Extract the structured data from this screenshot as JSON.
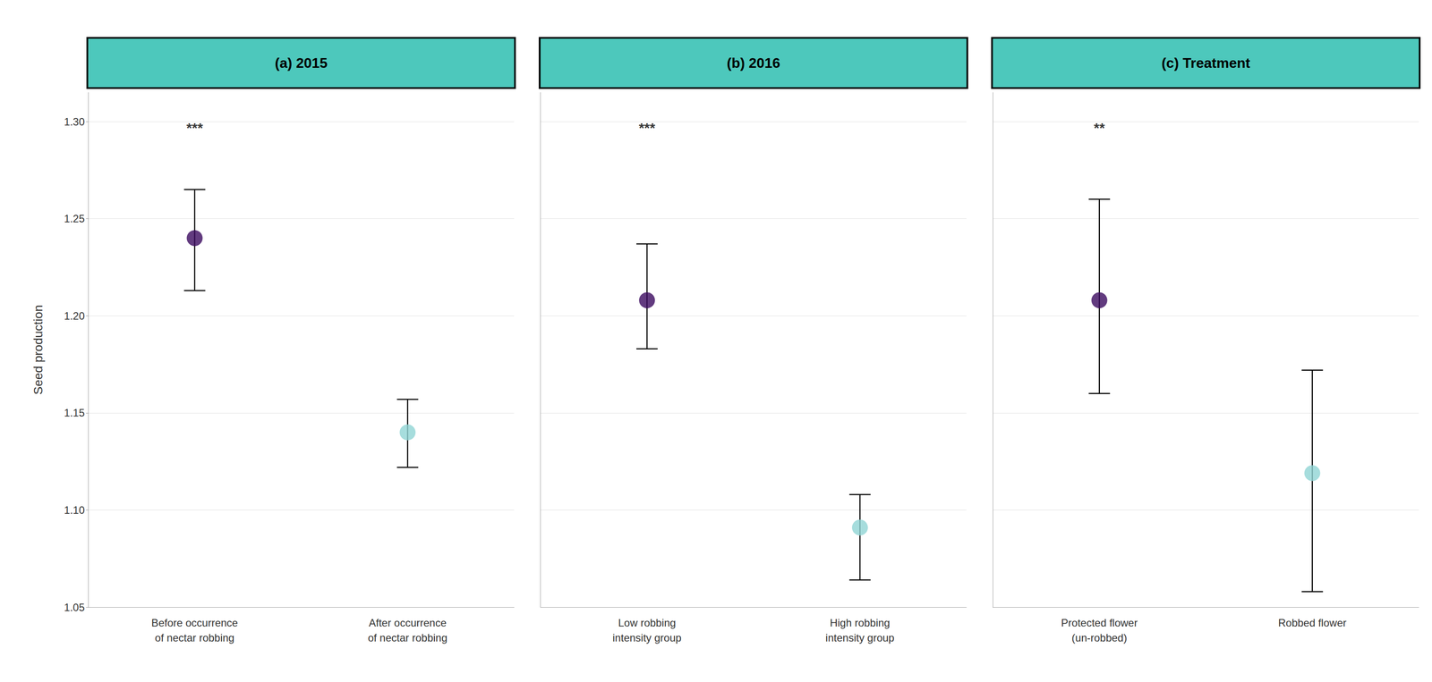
{
  "chart_data": [
    {
      "type": "scatter",
      "title": "(a) 2015",
      "categories": [
        "Before occurrence\nof nectar robbing",
        "After occurrence\nof nectar robbing"
      ],
      "values": [
        1.24,
        1.14
      ],
      "ci_low": [
        1.213,
        1.122
      ],
      "ci_high": [
        1.265,
        1.157
      ],
      "colors": [
        "#3B0A5F",
        "#90D4D4"
      ],
      "annotations": [
        {
          "text": "***",
          "category": "Before occurrence\nof nectar robbing",
          "y": 1.293
        }
      ],
      "ylabel": "Seed production",
      "ylim": [
        1.05,
        1.315
      ],
      "yticks": [
        1.05,
        {
          "value": 1.1,
          "label": "1.10"
        },
        1.15,
        {
          "value": 1.2,
          "label": "1.20"
        },
        1.25,
        {
          "value": 1.3,
          "label": "1.30"
        }
      ],
      "grid": true
    },
    {
      "type": "scatter",
      "title": "(b) 2016",
      "categories": [
        "Low robbing\nintensity group",
        "High robbing\nintensity group"
      ],
      "values": [
        1.208,
        1.091
      ],
      "ci_low": [
        1.183,
        1.064
      ],
      "ci_high": [
        1.237,
        1.108
      ],
      "colors": [
        "#3B0A5F",
        "#90D4D4"
      ],
      "annotations": [
        {
          "text": "***",
          "category": "Low robbing\nintensity group",
          "y": 1.293
        }
      ],
      "ylim": [
        1.05,
        1.315
      ],
      "yticks": [
        1.05,
        {
          "value": 1.1,
          "label": "1.10"
        },
        1.15,
        {
          "value": 1.2,
          "label": "1.20"
        },
        1.25,
        {
          "value": 1.3,
          "label": "1.30"
        }
      ],
      "tick_labels": "x",
      "grid": true
    },
    {
      "type": "scatter",
      "title": "(c) Treatment",
      "categories": [
        "Protected flower\n(un-robbed)",
        "Robbed flower"
      ],
      "values": [
        1.208,
        1.119
      ],
      "ci_low": [
        1.16,
        1.058
      ],
      "ci_high": [
        1.26,
        1.172
      ],
      "colors": [
        "#3B0A5F",
        "#90D4D4"
      ],
      "annotations": [
        {
          "text": "**",
          "category": "Protected flower\n(un-robbed)",
          "y": 1.293
        }
      ],
      "ylim": [
        1.05,
        1.315
      ],
      "yticks": [
        1.05,
        {
          "value": 1.1,
          "label": "1.10"
        },
        1.15,
        {
          "value": 1.2,
          "label": "1.20"
        },
        1.25,
        {
          "value": 1.3,
          "label": "1.30"
        }
      ],
      "tick_labels": "x",
      "grid": true
    }
  ]
}
